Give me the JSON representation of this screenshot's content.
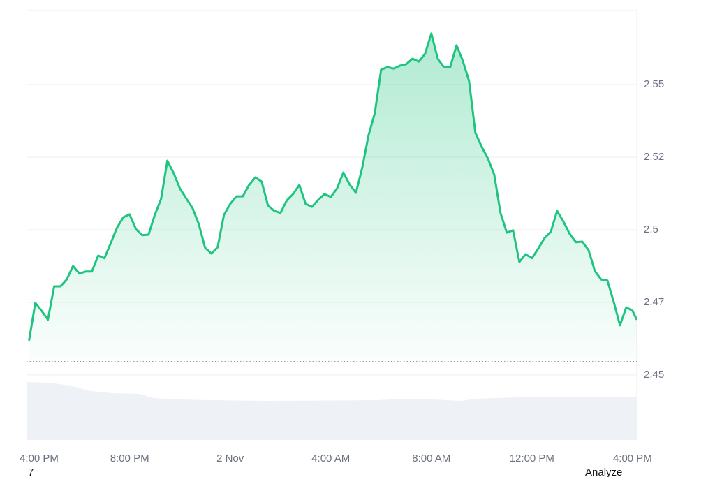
{
  "chart_data": {
    "type": "line",
    "color": "#1ec47f",
    "x": [
      0,
      0.25,
      0.5,
      0.75,
      1,
      1.25,
      1.5,
      1.75,
      2,
      2.25,
      2.5,
      2.75,
      3,
      3.25,
      3.5,
      3.75,
      4,
      4.25,
      4.5,
      4.75,
      5,
      5.25,
      5.5,
      5.75,
      6,
      6.25,
      6.5,
      6.75,
      7,
      7.25,
      7.5,
      7.75,
      8,
      8.25,
      8.5,
      8.75,
      9,
      9.25,
      9.5,
      9.75,
      10,
      10.25,
      10.5,
      10.75,
      11,
      11.25,
      11.5,
      11.75,
      12,
      12.25,
      12.5,
      12.75,
      13,
      13.25,
      13.5,
      13.75,
      14,
      14.25,
      14.5,
      14.75,
      15,
      15.25,
      15.5,
      15.75,
      16,
      16.25,
      16.5,
      16.75,
      17,
      17.25,
      17.5,
      17.75,
      18,
      18.25,
      18.5,
      18.75,
      19,
      19.25,
      19.5,
      19.75,
      20,
      20.25,
      20.5,
      20.75,
      21,
      21.25,
      21.5,
      21.75,
      22,
      22.25,
      22.5,
      22.75,
      23,
      23.25,
      23.5,
      23.75,
      24,
      24.17
    ],
    "values": [
      2.4618,
      2.4748,
      2.4721,
      2.469,
      2.4805,
      2.4805,
      2.4829,
      2.4875,
      2.4849,
      2.4856,
      2.4856,
      2.4911,
      2.4902,
      2.4954,
      2.5007,
      2.5043,
      2.5053,
      2.5002,
      2.4981,
      2.4983,
      2.5051,
      2.5106,
      2.5238,
      2.5195,
      2.5142,
      2.5108,
      2.5075,
      2.5019,
      2.4938,
      2.4918,
      2.494,
      2.5051,
      2.5089,
      2.5115,
      2.5115,
      2.5154,
      2.518,
      2.5166,
      2.5084,
      2.5065,
      2.5058,
      2.5101,
      2.5123,
      2.5154,
      2.5089,
      2.5079,
      2.5103,
      2.5123,
      2.5113,
      2.5142,
      2.5197,
      2.5156,
      2.5127,
      2.5214,
      2.5325,
      2.5402,
      2.5551,
      2.556,
      2.5555,
      2.5565,
      2.557,
      2.5589,
      2.5579,
      2.5606,
      2.5676,
      2.5589,
      2.556,
      2.556,
      2.5635,
      2.5582,
      2.5512,
      2.5334,
      2.5286,
      2.5245,
      2.519,
      2.5058,
      2.499,
      2.4998,
      2.4889,
      2.4916,
      2.4902,
      2.4935,
      2.4971,
      2.4993,
      2.5065,
      2.5029,
      2.4986,
      2.4957,
      2.4959,
      2.493,
      2.4858,
      2.4829,
      2.4825,
      2.4752,
      2.4671,
      2.4733,
      2.4721,
      2.469
    ],
    "baseline": 2.4546,
    "xlim": [
      -0.1,
      24.17
    ],
    "xticks": [
      {
        "value": 0,
        "label": "4:00 PM"
      },
      {
        "value": 4,
        "label": "8:00 PM"
      },
      {
        "value": 8,
        "label": "2 Nov"
      },
      {
        "value": 12,
        "label": "4:00 AM"
      },
      {
        "value": 16,
        "label": "8:00 AM"
      },
      {
        "value": 20,
        "label": "12:00 PM"
      },
      {
        "value": 24,
        "label": "4:00 PM"
      }
    ],
    "ylim": [
      2.4276,
      2.5755
    ],
    "yticks": [
      {
        "value": 2.45,
        "label": "2.45"
      },
      {
        "value": 2.475,
        "label": "2.47"
      },
      2.5,
      {
        "value": 2.525,
        "label": "2.52"
      },
      2.55
    ],
    "grid": true
  },
  "footer": {
    "left": "7",
    "right": "Analyze"
  }
}
